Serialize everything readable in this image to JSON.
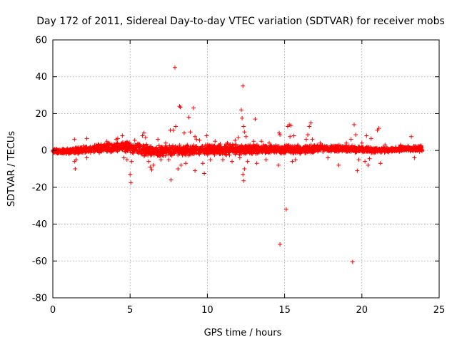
{
  "chart_data": {
    "type": "scatter",
    "title": "Day 172 of 2011, Sidereal Day-to-day VTEC variation (SDTVAR) for receiver mobs",
    "xlabel": "GPS time / hours",
    "ylabel": "SDTVAR / TECUs",
    "xlim": [
      0,
      25
    ],
    "ylim": [
      -80,
      60
    ],
    "x_ticks": [
      0,
      5,
      10,
      15,
      20,
      25
    ],
    "y_ticks": [
      -80,
      -60,
      -40,
      -20,
      0,
      20,
      40,
      60
    ],
    "x_tick_labels": [
      "0",
      "5",
      "10",
      "15",
      "20",
      "25"
    ],
    "y_tick_labels": [
      "-80",
      "-60",
      "-40",
      "-20",
      "0",
      "20",
      "40",
      "60"
    ],
    "grid": true,
    "marker": "+",
    "color": "#ff0000",
    "series": [
      {
        "name": "SDTVAR",
        "band": {
          "x_start": 0.0,
          "x_end": 23.9,
          "center": [
            [
              0,
              -0.5
            ],
            [
              1,
              -0.5
            ],
            [
              2,
              0.5
            ],
            [
              3,
              1
            ],
            [
              4,
              1.5
            ],
            [
              4.8,
              2.5
            ],
            [
              5.5,
              1
            ],
            [
              6.5,
              -0.5
            ],
            [
              7.5,
              0
            ],
            [
              8.5,
              0
            ],
            [
              10,
              0.5
            ],
            [
              11,
              0.5
            ],
            [
              12,
              0.5
            ],
            [
              13,
              0.5
            ],
            [
              14,
              0.5
            ],
            [
              15,
              0.5
            ],
            [
              16,
              0.5
            ],
            [
              17,
              1
            ],
            [
              18,
              1
            ],
            [
              19,
              1
            ],
            [
              20,
              0.5
            ],
            [
              21,
              0
            ],
            [
              22,
              0.5
            ],
            [
              23,
              1
            ],
            [
              23.9,
              1
            ]
          ],
          "half_width": [
            [
              0,
              1.2
            ],
            [
              1.5,
              2.2
            ],
            [
              3,
              2.5
            ],
            [
              4.8,
              3.5
            ],
            [
              6.5,
              3.5
            ],
            [
              8,
              3
            ],
            [
              10,
              3
            ],
            [
              12,
              3.5
            ],
            [
              14,
              2.5
            ],
            [
              16,
              2.5
            ],
            [
              18,
              2
            ],
            [
              20,
              2
            ],
            [
              22,
              1.5
            ],
            [
              23.9,
              2
            ]
          ]
        },
        "outliers": [
          [
            1.4,
            6
          ],
          [
            1.4,
            -6
          ],
          [
            1.45,
            -10
          ],
          [
            1.5,
            -5
          ],
          [
            2.2,
            6.5
          ],
          [
            2.2,
            -4
          ],
          [
            3.5,
            5
          ],
          [
            4.1,
            6
          ],
          [
            4.2,
            6.5
          ],
          [
            4.5,
            8
          ],
          [
            4.6,
            -4
          ],
          [
            4.8,
            -5
          ],
          [
            5.0,
            -13
          ],
          [
            5.05,
            -17.5
          ],
          [
            5.1,
            -6
          ],
          [
            5.3,
            5.5
          ],
          [
            5.8,
            8
          ],
          [
            5.9,
            9.5
          ],
          [
            6.0,
            7
          ],
          [
            6.2,
            -6
          ],
          [
            6.3,
            -9
          ],
          [
            6.4,
            -10.5
          ],
          [
            6.5,
            -8
          ],
          [
            6.8,
            6
          ],
          [
            7.0,
            -5
          ],
          [
            7.3,
            4
          ],
          [
            7.5,
            -5
          ],
          [
            7.6,
            11
          ],
          [
            7.65,
            -16
          ],
          [
            7.8,
            11
          ],
          [
            7.9,
            45
          ],
          [
            7.95,
            13
          ],
          [
            8.2,
            24
          ],
          [
            8.25,
            23.5
          ],
          [
            8.1,
            -10
          ],
          [
            8.3,
            -8
          ],
          [
            8.5,
            9.5
          ],
          [
            8.6,
            -7
          ],
          [
            8.7,
            3
          ],
          [
            8.8,
            18
          ],
          [
            8.9,
            10
          ],
          [
            9.1,
            23
          ],
          [
            9.2,
            7.5
          ],
          [
            9.3,
            6
          ],
          [
            9.2,
            -11
          ],
          [
            9.5,
            5.5
          ],
          [
            9.7,
            -7
          ],
          [
            9.8,
            -12.5
          ],
          [
            9.95,
            8
          ],
          [
            10.2,
            -5
          ],
          [
            10.5,
            5
          ],
          [
            11.0,
            -5
          ],
          [
            11.3,
            4
          ],
          [
            11.6,
            -6
          ],
          [
            11.8,
            5.5
          ],
          [
            12.0,
            7
          ],
          [
            12.1,
            -4
          ],
          [
            12.2,
            22
          ],
          [
            12.25,
            17.5
          ],
          [
            12.3,
            35
          ],
          [
            12.35,
            13
          ],
          [
            12.4,
            10
          ],
          [
            12.5,
            7.5
          ],
          [
            12.3,
            -13
          ],
          [
            12.35,
            -16.5
          ],
          [
            12.4,
            -10
          ],
          [
            12.6,
            -6
          ],
          [
            13.0,
            5
          ],
          [
            13.1,
            17
          ],
          [
            13.2,
            -7
          ],
          [
            13.5,
            5
          ],
          [
            13.8,
            -5
          ],
          [
            14.0,
            4
          ],
          [
            14.6,
            -8
          ],
          [
            14.7,
            -51
          ],
          [
            14.65,
            9.5
          ],
          [
            14.7,
            8.5
          ],
          [
            15.1,
            -32
          ],
          [
            15.2,
            13
          ],
          [
            15.3,
            14
          ],
          [
            15.35,
            7.5
          ],
          [
            15.4,
            13.5
          ],
          [
            15.5,
            -6
          ],
          [
            15.6,
            8
          ],
          [
            15.7,
            -5
          ],
          [
            16.4,
            6
          ],
          [
            16.5,
            8.5
          ],
          [
            16.6,
            13
          ],
          [
            16.7,
            15
          ],
          [
            16.8,
            6
          ],
          [
            17.3,
            4
          ],
          [
            17.8,
            -4
          ],
          [
            18.5,
            -8
          ],
          [
            19.0,
            4
          ],
          [
            19.3,
            6
          ],
          [
            19.4,
            -60.5
          ],
          [
            19.5,
            14
          ],
          [
            19.6,
            8.5
          ],
          [
            19.7,
            -11
          ],
          [
            19.8,
            -5
          ],
          [
            20.0,
            4
          ],
          [
            20.2,
            -6
          ],
          [
            20.3,
            8
          ],
          [
            20.4,
            -8
          ],
          [
            20.5,
            -4.5
          ],
          [
            20.6,
            6.5
          ],
          [
            21.0,
            11
          ],
          [
            21.1,
            12
          ],
          [
            21.2,
            -7
          ],
          [
            21.5,
            3
          ],
          [
            22.5,
            3
          ],
          [
            23.2,
            7.5
          ],
          [
            23.4,
            -4
          ]
        ]
      }
    ]
  }
}
